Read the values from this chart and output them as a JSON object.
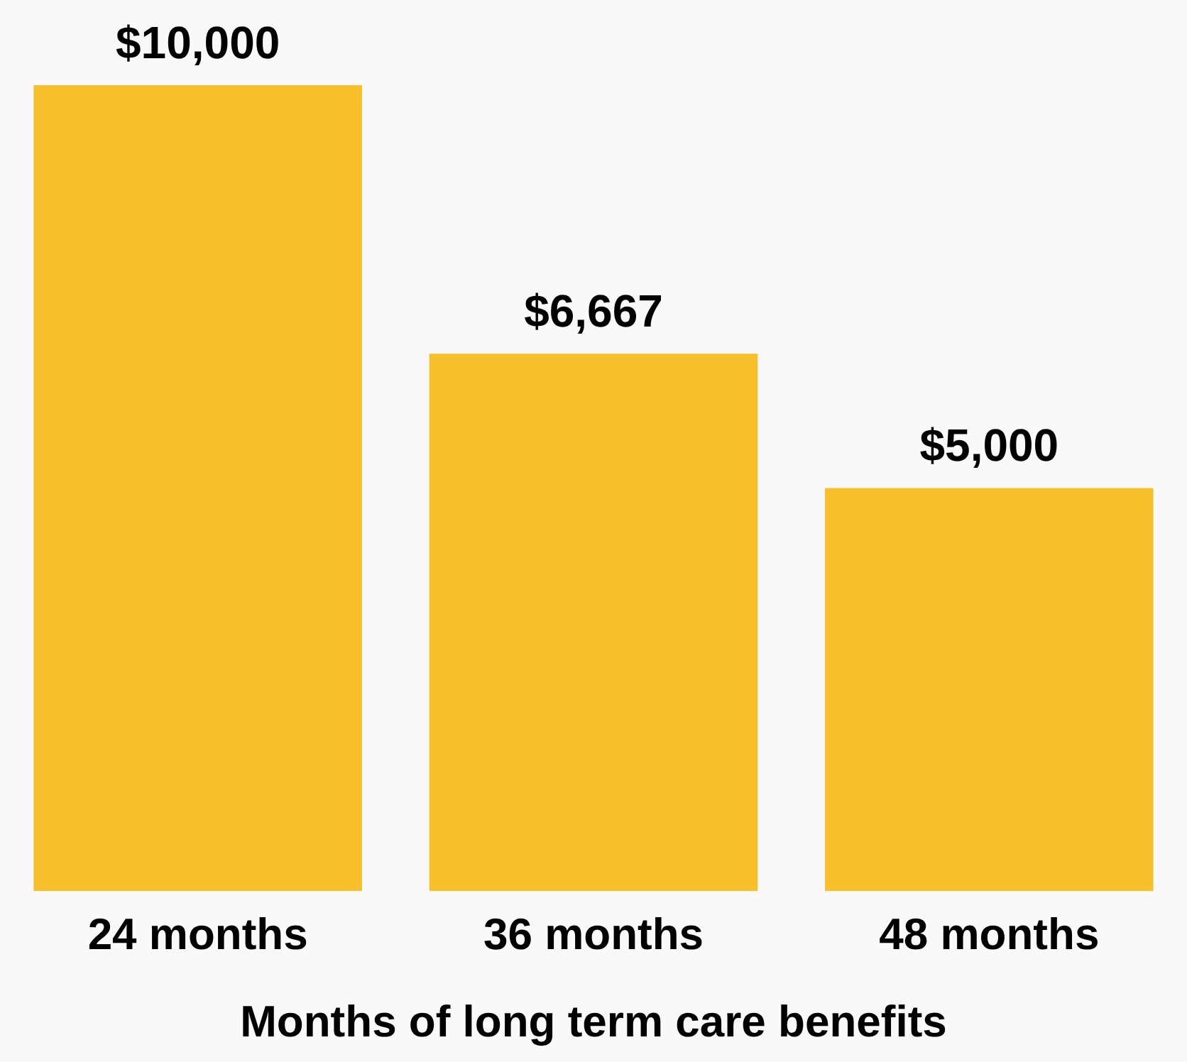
{
  "chart_data": {
    "type": "bar",
    "xlabel": "Months of long term care benefits",
    "categories": [
      "24 months",
      "36 months",
      "48 months"
    ],
    "values": [
      10000,
      6667,
      5000
    ],
    "value_labels": [
      "$10,000",
      "$6,667",
      "$5,000"
    ],
    "color": "#f8c12b",
    "tick_labels": "x",
    "grid": false,
    "legend": false
  }
}
